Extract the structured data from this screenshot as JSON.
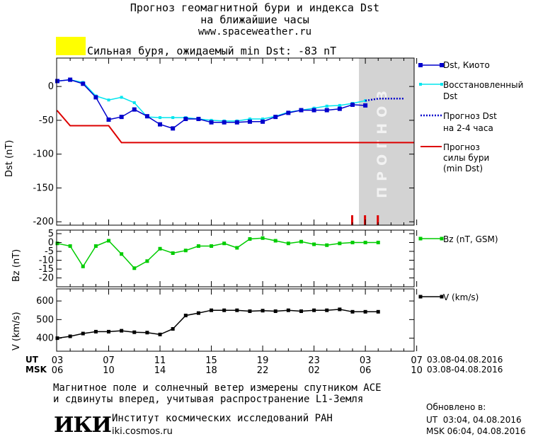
{
  "header": {
    "title_line1": "Прогноз геомагнитной бури и индекса Dst",
    "title_line2": "на ближайшие часы",
    "title_line3": "www.spaceweather.ru"
  },
  "storm": {
    "color": "#ffff00",
    "text": "Сильная буря, ожидаемый min Dst: -83 nT"
  },
  "colors": {
    "dst": "#0000cc",
    "restored": "#00e5ee",
    "forecast": "#0000cc",
    "storm_line": "#dd0000",
    "bz": "#00cc00",
    "v": "#000000",
    "forecast_band": "#d3d3d3"
  },
  "forecast_band_label": "ПРОГНОЗ",
  "chart_data": [
    {
      "type": "line",
      "ylabel": "Dst (nT)",
      "ylim": [
        -205,
        42
      ],
      "y_ticks": [
        0,
        -50,
        -100,
        -150,
        -200
      ],
      "xlim": [
        0,
        28
      ],
      "forecast_from": 23.5,
      "series": [
        {
          "name": "Dst, Киото",
          "x": [
            0,
            1,
            2,
            3,
            4,
            5,
            6,
            7,
            8,
            9,
            10,
            11,
            12,
            13,
            14,
            15,
            16,
            17,
            18,
            19,
            20,
            21,
            22,
            23,
            24
          ],
          "y": [
            8,
            10,
            4,
            -16,
            -49,
            -45,
            -34,
            -44,
            -56,
            -62,
            -48,
            -48,
            -53,
            -53,
            -53,
            -52,
            -52,
            -45,
            -39,
            -35,
            -35,
            -35,
            -33,
            -27,
            -28
          ]
        },
        {
          "name": "Восстановленный Dst",
          "x": [
            0,
            1,
            2,
            3,
            4,
            5,
            6,
            7,
            8,
            9,
            10,
            11,
            12,
            13,
            14,
            15,
            16,
            17,
            18,
            19,
            20,
            21,
            22,
            23,
            24
          ],
          "y": [
            8,
            10,
            6,
            -14,
            -20,
            -16,
            -24,
            -45,
            -46,
            -46,
            -46,
            -48,
            -50,
            -51,
            -51,
            -48,
            -48,
            -44,
            -38,
            -35,
            -32,
            -29,
            -28,
            -25,
            -21
          ]
        },
        {
          "name": "Прогноз Dst на 2-4 часа",
          "x": [
            24,
            25,
            26,
            27
          ],
          "y": [
            -21,
            -18,
            -18,
            -18
          ]
        },
        {
          "name": "Прогноз силы бури (min Dst)",
          "x": [
            -1,
            0,
            1,
            2,
            3,
            4,
            5,
            6,
            29
          ],
          "y": [
            -36,
            -36,
            -58,
            -58,
            -58,
            -58,
            -83,
            -83,
            -83
          ]
        }
      ],
      "marker_x": [
        23,
        24,
        25
      ]
    },
    {
      "type": "line",
      "ylabel": "Bz (nT)",
      "ylim": [
        -25,
        7
      ],
      "y_ticks": [
        5,
        0,
        -5,
        -10,
        -15,
        -20
      ],
      "xlim": [
        0,
        28
      ],
      "series": [
        {
          "name": "Bz (nT, GSM)",
          "x": [
            0,
            1,
            2,
            3,
            4,
            5,
            6,
            7,
            8,
            9,
            10,
            11,
            12,
            13,
            14,
            15,
            16,
            17,
            18,
            19,
            20,
            21,
            22,
            23,
            24,
            25
          ],
          "y": [
            -0.5,
            -2,
            -13.5,
            -2,
            1,
            -6.5,
            -14.5,
            -10.5,
            -3.5,
            -6,
            -4.5,
            -2,
            -2,
            -0.5,
            -3,
            2,
            2.5,
            1,
            -0.5,
            0.5,
            -1,
            -1.5,
            -0.5,
            0,
            0,
            0
          ]
        }
      ]
    },
    {
      "type": "line",
      "ylabel": "V (km/s)",
      "ylim": [
        330,
        665
      ],
      "y_ticks": [
        600,
        500,
        400
      ],
      "xlim": [
        0,
        28
      ],
      "series": [
        {
          "name": "V (km/s)",
          "x": [
            0,
            1,
            2,
            3,
            4,
            5,
            6,
            7,
            8,
            9,
            10,
            11,
            12,
            13,
            14,
            15,
            16,
            17,
            18,
            19,
            20,
            21,
            22,
            23,
            24,
            25
          ],
          "y": [
            400,
            410,
            425,
            435,
            435,
            440,
            432,
            430,
            420,
            450,
            522,
            535,
            550,
            550,
            550,
            545,
            548,
            545,
            550,
            545,
            550,
            550,
            555,
            542,
            542,
            542
          ]
        }
      ]
    }
  ],
  "x_axis": {
    "ut_label": "UT",
    "msk_label": "MSK",
    "ut_ticks": [
      "03",
      "07",
      "11",
      "15",
      "19",
      "23",
      "03",
      "07"
    ],
    "msk_ticks": [
      "06",
      "10",
      "14",
      "18",
      "22",
      "02",
      "06",
      "10"
    ],
    "ut_range": "03.08-04.08.2016",
    "msk_range": "03.08-04.08.2016"
  },
  "legend": {
    "dst": "Dst, Киото",
    "restored_1": "Восстановленный",
    "restored_2": "Dst",
    "forecast_1": "Прогноз Dst",
    "forecast_2": "на 2-4 часа",
    "storm_1": "Прогноз",
    "storm_2": "силы бури",
    "storm_3": "(min Dst)",
    "bz": "Bz (nT, GSM)",
    "v": "V (km/s)"
  },
  "footer": {
    "note_line1": "Магнитное поле и солнечный ветер измерены спутником ACE",
    "note_line2": "и сдвинуты вперед, учитывая распространение L1-Земля",
    "logo": "ИКИ",
    "institute": "Институт космических исследований РАН",
    "site": "iki.cosmos.ru",
    "updated_label": "Обновлено в:",
    "updated_ut": "UT  03:04, 04.08.2016",
    "updated_msk": "MSK 06:04, 04.08.2016"
  }
}
